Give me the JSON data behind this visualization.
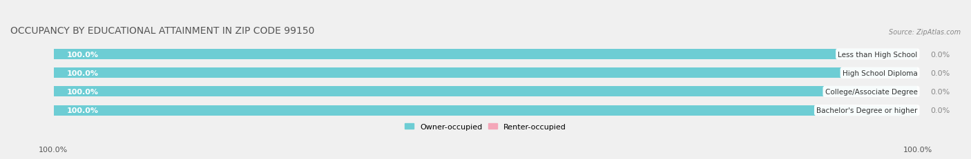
{
  "title": "OCCUPANCY BY EDUCATIONAL ATTAINMENT IN ZIP CODE 99150",
  "source": "Source: ZipAtlas.com",
  "categories": [
    "Less than High School",
    "High School Diploma",
    "College/Associate Degree",
    "Bachelor's Degree or higher"
  ],
  "owner_values": [
    100.0,
    100.0,
    100.0,
    100.0
  ],
  "renter_values": [
    0.0,
    0.0,
    0.0,
    0.0
  ],
  "owner_color": "#6dcdd4",
  "renter_color": "#f4a7b9",
  "bg_color": "#f0f0f0",
  "bar_bg_color": "#e8e8e8",
  "title_fontsize": 10,
  "label_fontsize": 8,
  "tick_fontsize": 8,
  "left_label": "100.0%",
  "right_label": "100.0%",
  "owner_pct_label": "100.0%",
  "renter_pct_label": "0.0%"
}
